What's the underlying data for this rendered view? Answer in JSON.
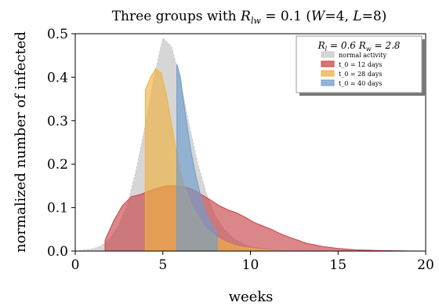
{
  "chart_data": {
    "type": "area",
    "title": "Three groups with R_lw = 0.1 (W=4, L=8)",
    "xlabel": "weeks",
    "ylabel": "normalized number of infected",
    "xlim": [
      0,
      20
    ],
    "ylim": [
      0,
      0.5
    ],
    "xticks": [
      "0",
      "5",
      "10",
      "15",
      "20"
    ],
    "yticks": [
      "0.0",
      "0.1",
      "0.2",
      "0.3",
      "0.4",
      "0.5"
    ],
    "grid": false,
    "legend_position": "top-right",
    "legend_header": "R_l = 0.6  R_w = 2.8",
    "series": [
      {
        "name": "normal activity",
        "color": "#c8c8c8",
        "x": [
          0,
          1,
          1.5,
          2,
          2.5,
          3,
          3.5,
          4,
          4.5,
          5,
          5.5,
          6,
          6.5,
          7,
          7.5,
          8,
          8.5,
          9,
          9.5,
          10,
          11,
          12
        ],
        "y": [
          0.0,
          0.005,
          0.012,
          0.03,
          0.06,
          0.11,
          0.19,
          0.29,
          0.4,
          0.49,
          0.47,
          0.39,
          0.29,
          0.2,
          0.13,
          0.08,
          0.05,
          0.03,
          0.018,
          0.01,
          0.004,
          0.0
        ]
      },
      {
        "name": "t_0 = 12 days",
        "color": "#c8454a",
        "x": [
          1.7,
          2.2,
          2.7,
          3.2,
          3.7,
          4.2,
          4.7,
          5.2,
          5.7,
          6.2,
          6.7,
          7.2,
          7.7,
          8.2,
          8.7,
          9.2,
          9.7,
          10.2,
          10.7,
          11.2,
          11.7,
          12.2,
          12.7,
          13.2,
          13.7,
          14.2,
          15,
          16,
          17,
          18,
          19,
          20
        ],
        "y": [
          0.025,
          0.07,
          0.105,
          0.125,
          0.13,
          0.138,
          0.145,
          0.15,
          0.15,
          0.148,
          0.142,
          0.13,
          0.118,
          0.105,
          0.095,
          0.088,
          0.078,
          0.066,
          0.058,
          0.05,
          0.04,
          0.032,
          0.025,
          0.018,
          0.014,
          0.01,
          0.006,
          0.003,
          0.0015,
          0.0008,
          0.0003,
          0.0
        ]
      },
      {
        "name": "t_0 = 28 days",
        "color": "#f0b040",
        "x": [
          4.0,
          4.3,
          4.6,
          4.9,
          5.2,
          5.5,
          5.8,
          6.1,
          6.4,
          6.7,
          7.0,
          7.3,
          7.6,
          8.0,
          8.5,
          9.0,
          9.5,
          10.0,
          10.5,
          11.0,
          11.5,
          12.0
        ],
        "y": [
          0.37,
          0.4,
          0.42,
          0.41,
          0.36,
          0.29,
          0.22,
          0.165,
          0.13,
          0.1,
          0.08,
          0.06,
          0.047,
          0.034,
          0.022,
          0.014,
          0.009,
          0.006,
          0.004,
          0.002,
          0.001,
          0.0
        ]
      },
      {
        "name": "t_0 = 40 days",
        "color": "#6f9ccc",
        "x": [
          5.8,
          6.0,
          6.3,
          6.6,
          6.9,
          7.2,
          7.5,
          7.8,
          8.1
        ],
        "y": [
          0.43,
          0.4,
          0.31,
          0.23,
          0.17,
          0.12,
          0.085,
          0.06,
          0.04
        ]
      }
    ]
  }
}
